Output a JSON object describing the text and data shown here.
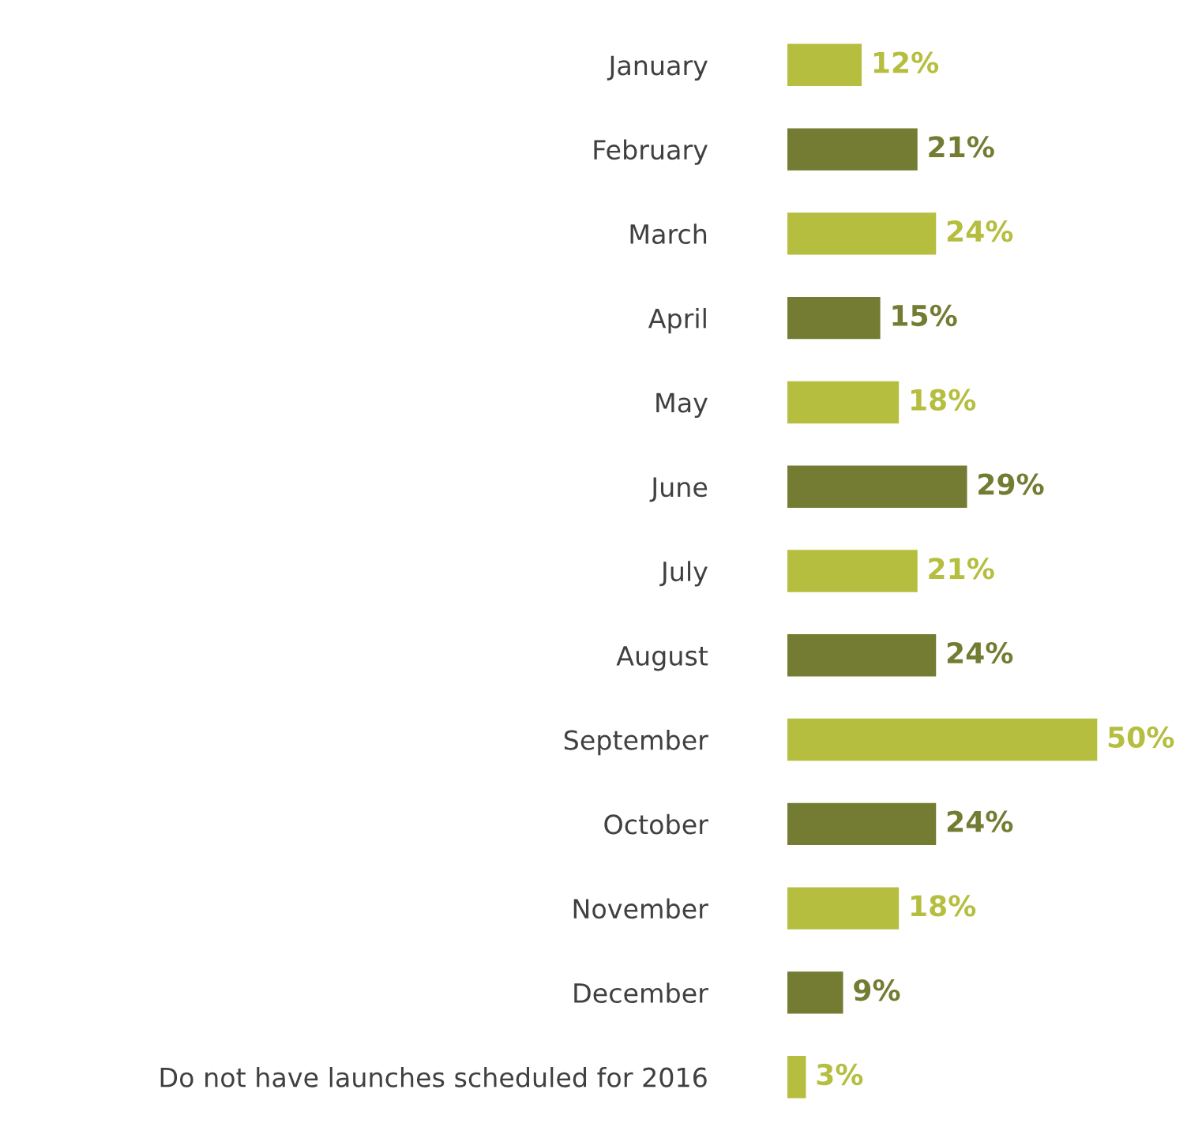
{
  "chart_data": {
    "type": "bar",
    "orientation": "horizontal",
    "grid": false,
    "value_labels": [
      "12%",
      "21%",
      "24%",
      "15%",
      "18%",
      "29%",
      "21%",
      "24%",
      "50%",
      "24%",
      "18%",
      "9%",
      "3%"
    ],
    "legend": false,
    "tick_labels": "y",
    "categories": [
      "January",
      "February",
      "March",
      "April",
      "May",
      "June",
      "July",
      "August",
      "September",
      "October",
      "November",
      "December",
      "Do not have launches scheduled for 2016"
    ],
    "values": [
      12,
      21,
      24,
      15,
      18,
      29,
      21,
      24,
      50,
      24,
      18,
      9,
      3
    ],
    "colors": [
      "#b5be3f",
      "#737c32",
      "#b5be3f",
      "#737c32",
      "#b5be3f",
      "#737c32",
      "#b5be3f",
      "#737c32",
      "#b5be3f",
      "#737c32",
      "#b5be3f",
      "#737c32",
      "#b5be3f"
    ]
  }
}
